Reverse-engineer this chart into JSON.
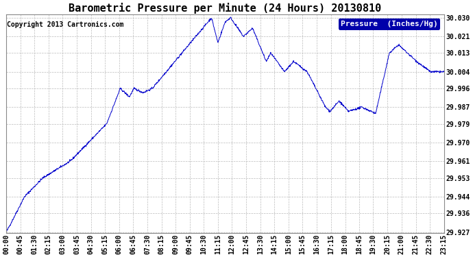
{
  "title": "Barometric Pressure per Minute (24 Hours) 20130810",
  "copyright": "Copyright 2013 Cartronics.com",
  "legend_label": "Pressure  (Inches/Hg)",
  "line_color": "#0000CC",
  "background_color": "#ffffff",
  "plot_background": "#ffffff",
  "grid_color": "#bbbbbb",
  "ylim": [
    29.9265,
    30.0315
  ],
  "yticks": [
    29.927,
    29.936,
    29.944,
    29.953,
    29.961,
    29.97,
    29.979,
    29.987,
    29.996,
    30.004,
    30.013,
    30.021,
    30.03
  ],
  "xtick_labels": [
    "00:00",
    "00:45",
    "01:30",
    "02:15",
    "03:00",
    "03:45",
    "04:30",
    "05:15",
    "06:00",
    "06:45",
    "07:30",
    "08:15",
    "09:00",
    "09:45",
    "10:30",
    "11:15",
    "12:00",
    "12:45",
    "13:30",
    "14:15",
    "15:00",
    "15:45",
    "16:30",
    "17:15",
    "18:00",
    "18:45",
    "19:30",
    "20:15",
    "21:00",
    "21:45",
    "22:30",
    "23:15"
  ],
  "title_fontsize": 11,
  "copyright_fontsize": 7,
  "legend_fontsize": 8,
  "tick_fontsize": 7,
  "figsize": [
    6.9,
    3.75
  ],
  "dpi": 100
}
